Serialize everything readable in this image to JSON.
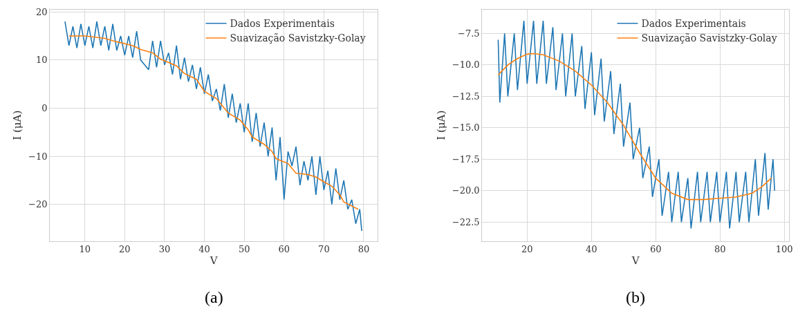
{
  "chart_data": [
    {
      "type": "line",
      "xlabel": "V",
      "ylabel": "I (μA)",
      "annotations": [
        "(a)"
      ],
      "xlim": [
        1.2,
        83.5
      ],
      "ylim": [
        -27.6,
        20.5
      ],
      "xticks": [
        10,
        20,
        30,
        40,
        50,
        60,
        70,
        80
      ],
      "yticks": [
        -20,
        -10,
        0,
        10,
        20
      ],
      "grid": true,
      "legend": "top right",
      "series": [
        {
          "name": "Dados Experimentais",
          "color": "#1f77b4",
          "x": [
            5,
            6,
            7,
            8,
            9,
            10,
            11,
            12,
            13,
            14,
            15,
            16,
            17,
            18,
            19,
            20,
            21,
            22,
            23,
            24,
            25,
            26,
            27,
            28,
            29,
            30,
            31,
            32,
            33,
            34,
            35,
            36,
            37,
            38,
            39,
            40,
            41,
            42,
            43,
            44,
            45,
            46,
            47,
            48,
            49,
            50,
            51,
            52,
            53,
            54,
            55,
            56,
            57,
            58,
            59,
            60,
            61,
            62,
            63,
            64,
            65,
            66,
            67,
            68,
            69,
            70,
            71,
            72,
            73,
            74,
            75,
            76,
            77,
            78,
            79,
            79.5
          ],
          "values": [
            18,
            13,
            17,
            12.5,
            17.5,
            13,
            17,
            12.5,
            18,
            13,
            17,
            12,
            17.5,
            12,
            15,
            11,
            15,
            10.5,
            16,
            10,
            9,
            8,
            14,
            8.5,
            14,
            9,
            11.5,
            7,
            13,
            6,
            10.5,
            5.5,
            9,
            4,
            8.5,
            3,
            7,
            1.5,
            4,
            -0.5,
            5,
            -2,
            3,
            -3,
            1,
            -5,
            1,
            -7,
            -1,
            -8,
            -3,
            -10,
            -4,
            -15,
            -6,
            -19,
            -9,
            -12,
            -8,
            -16,
            -11,
            -15,
            -10,
            -18,
            -10,
            -17,
            -13,
            -20,
            -12.5,
            -19,
            -15,
            -21,
            -19,
            -24,
            -21,
            -25.5
          ]
        },
        {
          "name": "Suavização Savistzky-Golay",
          "color": "#ff7f0e",
          "x": [
            6,
            10,
            15,
            18,
            22,
            24,
            27,
            29,
            33,
            35,
            38,
            40,
            43,
            45,
            46,
            49,
            51,
            52,
            55,
            57,
            58,
            61,
            63,
            66,
            68,
            70,
            72,
            74,
            75,
            78.6
          ],
          "values": [
            15,
            15,
            14.5,
            13.8,
            13,
            12.2,
            11.5,
            10.2,
            8.8,
            7.2,
            6,
            3.5,
            2,
            0,
            -1,
            -2.5,
            -4.5,
            -6,
            -7.5,
            -9,
            -10.5,
            -11.5,
            -13.5,
            -13.8,
            -14.3,
            -15.3,
            -16.2,
            -18,
            -19.5,
            -21
          ]
        }
      ]
    },
    {
      "type": "line",
      "xlabel": "V",
      "ylabel": "I (μA)",
      "annotations": [
        "(b)"
      ],
      "xlim": [
        6.0,
        101.5
      ],
      "ylim": [
        -24.0,
        -5.6
      ],
      "xticks": [
        20,
        40,
        60,
        80,
        100
      ],
      "yticks": [
        {
          "value": -22.5,
          "label": "−22.5"
        },
        {
          "value": -20,
          "label": "−20.0"
        },
        {
          "value": -17.5,
          "label": "−17.5"
        },
        {
          "value": -15,
          "label": "−15.0"
        },
        {
          "value": -12.5,
          "label": "−12.5"
        },
        {
          "value": -10,
          "label": "−10.0"
        },
        {
          "value": -7.5,
          "label": "−7.5"
        }
      ],
      "grid": true,
      "legend": "top right",
      "series": [
        {
          "name": "Dados Experimentais",
          "color": "#1f77b4",
          "x": [
            11,
            11.5,
            13,
            14,
            16,
            17,
            19,
            20,
            22,
            23,
            25,
            26,
            28,
            29,
            31,
            32,
            34,
            35,
            37,
            38,
            40,
            41,
            43,
            44,
            46,
            47,
            49,
            50,
            52,
            53,
            55,
            56,
            58,
            59,
            61,
            62,
            64,
            65,
            67,
            68,
            70,
            71,
            73,
            74,
            76,
            77,
            79,
            80,
            82,
            83,
            85,
            86,
            88,
            89,
            91,
            92,
            94,
            95,
            96.5,
            97
          ],
          "values": [
            -8,
            -13,
            -7.5,
            -12.5,
            -7.5,
            -12,
            -6.5,
            -11.5,
            -6.5,
            -11.5,
            -6.5,
            -11.5,
            -7,
            -12,
            -7.5,
            -12.5,
            -7.5,
            -12.5,
            -8.5,
            -13.5,
            -9,
            -14,
            -9.5,
            -14.5,
            -10.5,
            -15.5,
            -11.5,
            -16.5,
            -13,
            -17.5,
            -15,
            -19,
            -16.5,
            -20.5,
            -17.5,
            -22,
            -18.5,
            -22.5,
            -18.5,
            -22.5,
            -19,
            -23,
            -18.5,
            -22.5,
            -18.5,
            -22.5,
            -18.5,
            -22.5,
            -18.5,
            -23,
            -18.5,
            -22.5,
            -18.5,
            -22.5,
            -17.5,
            -22,
            -17,
            -21.5,
            -17.5,
            -20
          ]
        },
        {
          "name": "Suavização Savistzky-Golay",
          "color": "#ff7f0e",
          "x": [
            11,
            14,
            17,
            20,
            22,
            25,
            30,
            35,
            40,
            45,
            50,
            55,
            60,
            65,
            70,
            75,
            80,
            85,
            90,
            93,
            96
          ],
          "values": [
            -10.8,
            -10,
            -9.5,
            -9.15,
            -9.1,
            -9.2,
            -9.7,
            -10.5,
            -11.6,
            -13,
            -14.8,
            -17,
            -19,
            -20.2,
            -20.7,
            -20.7,
            -20.6,
            -20.5,
            -20.2,
            -19.7,
            -19
          ]
        }
      ]
    }
  ]
}
